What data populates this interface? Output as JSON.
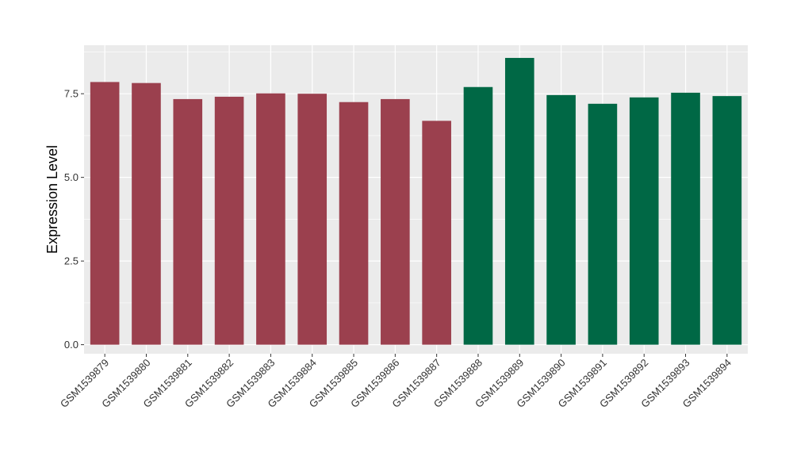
{
  "chart_data": {
    "type": "bar",
    "title": "",
    "xlabel": "",
    "ylabel": "Expression Level",
    "ylim": [
      -0.27,
      8.95
    ],
    "yticks": [
      0.0,
      2.5,
      5.0,
      7.5
    ],
    "ytick_labels": [
      "0.0",
      "2.5",
      "5.0",
      "7.5"
    ],
    "grid": true,
    "legend": "none",
    "categories": [
      "GSM1539879",
      "GSM1539880",
      "GSM1539881",
      "GSM1539882",
      "GSM1539883",
      "GSM1539884",
      "GSM1539885",
      "GSM1539886",
      "GSM1539887",
      "GSM1539888",
      "GSM1539889",
      "GSM1539890",
      "GSM1539891",
      "GSM1539892",
      "GSM1539893",
      "GSM1539894"
    ],
    "values": [
      7.85,
      7.82,
      7.34,
      7.41,
      7.51,
      7.5,
      7.25,
      7.34,
      6.69,
      7.7,
      8.57,
      7.46,
      7.2,
      7.39,
      7.53,
      7.43
    ],
    "bar_colors": [
      "#9B404E",
      "#9B404E",
      "#9B404E",
      "#9B404E",
      "#9B404E",
      "#9B404E",
      "#9B404E",
      "#9B404E",
      "#9B404E",
      "#006845",
      "#006845",
      "#006845",
      "#006845",
      "#006845",
      "#006845",
      "#006845"
    ],
    "panel_background": "#EBEBEB",
    "grid_color": "#FFFFFF"
  }
}
